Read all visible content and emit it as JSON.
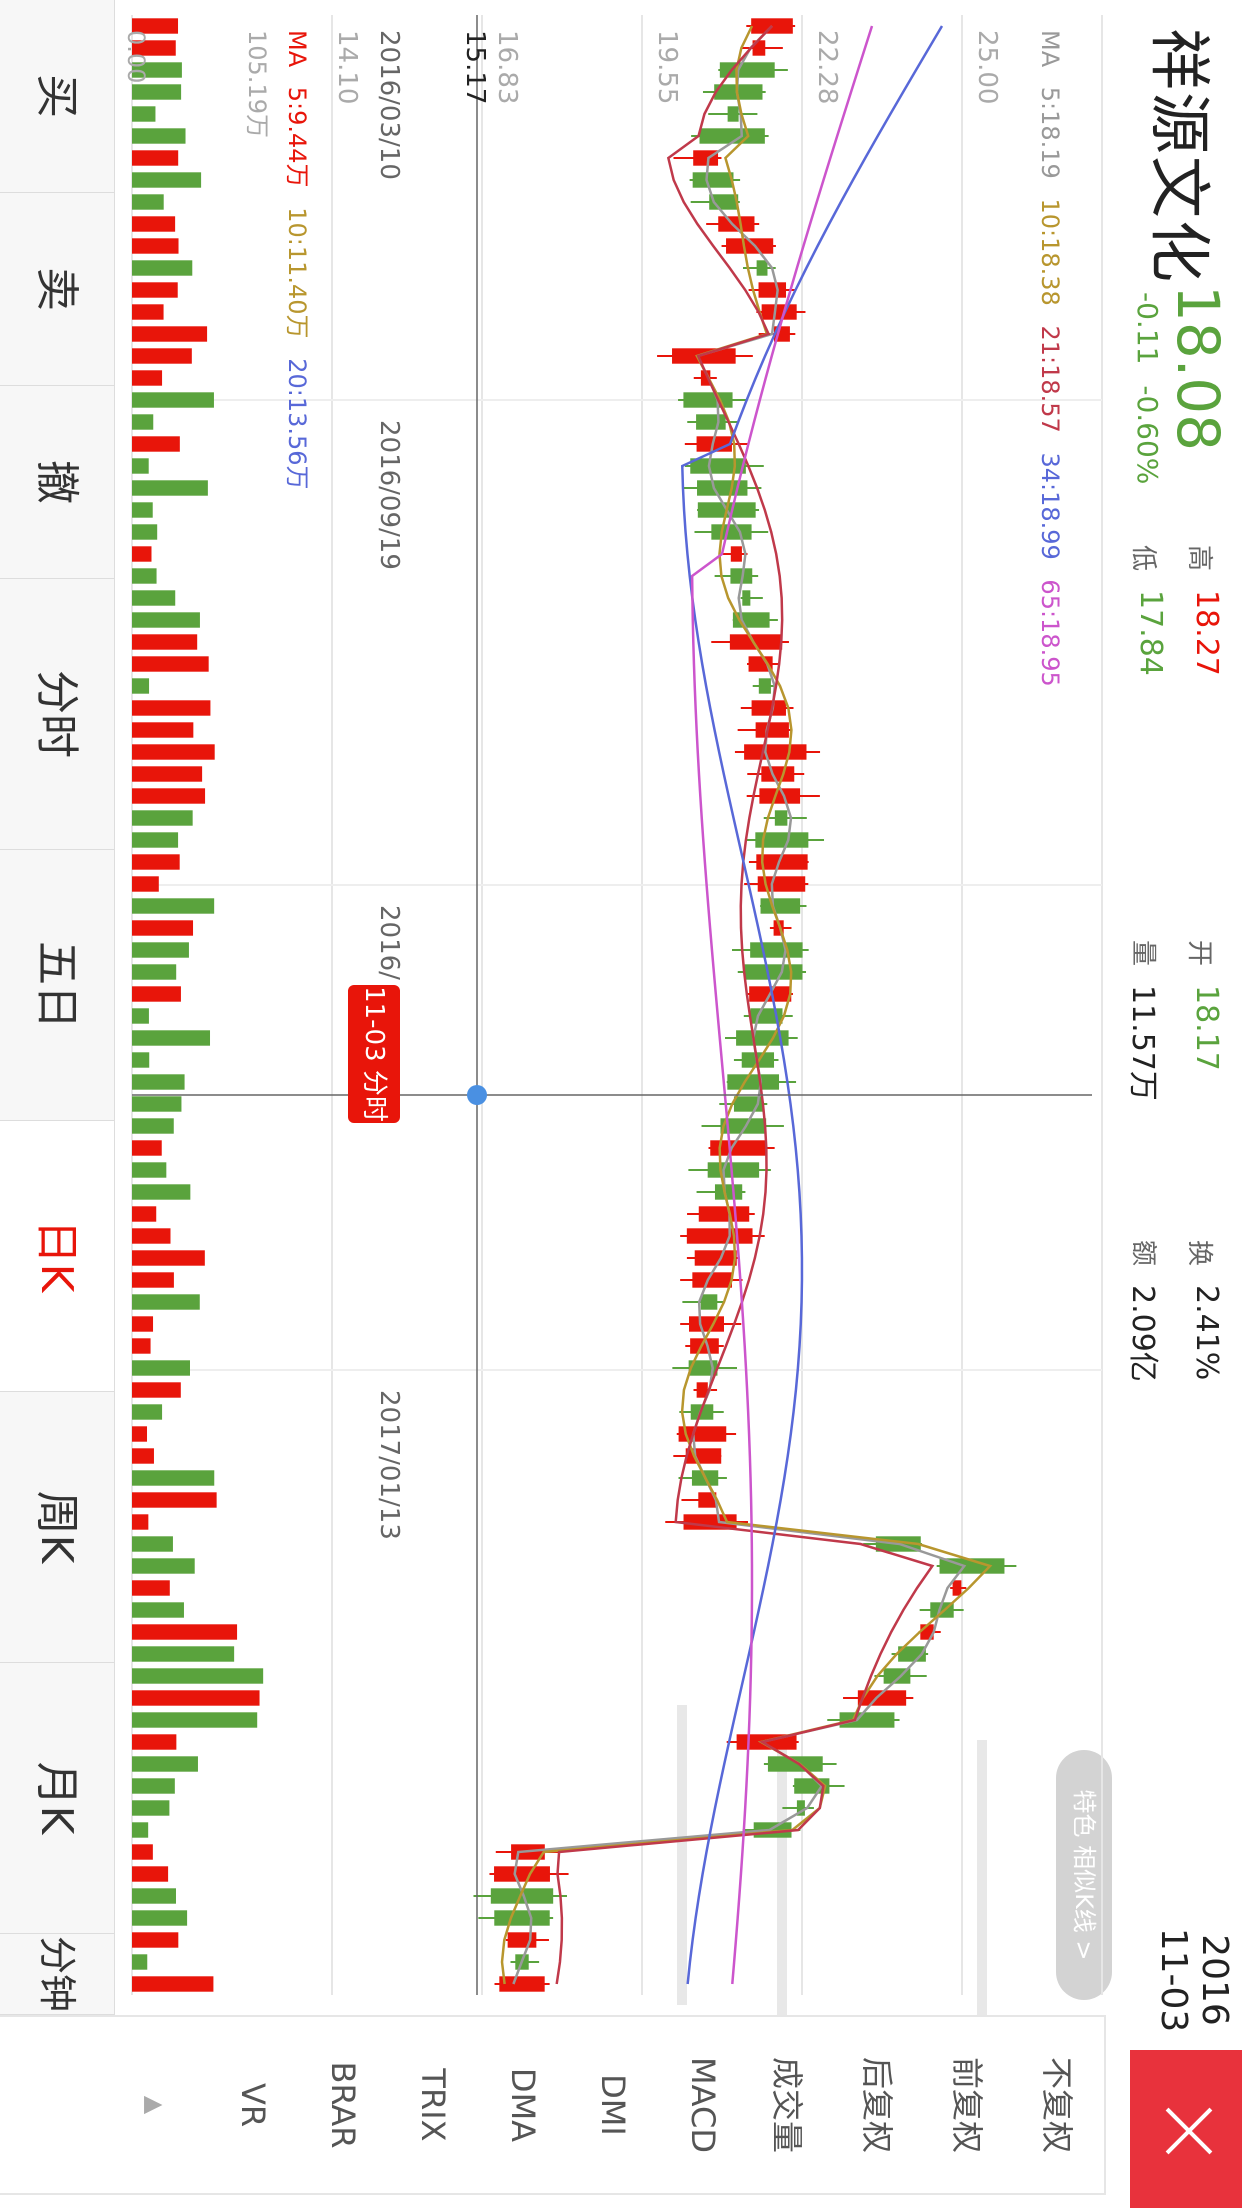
{
  "header": {
    "stock_name": "祥源文化",
    "price": "18.08",
    "change": "-0.11",
    "change_pct": "-0.60%",
    "high_label": "高",
    "high_value": "18.27",
    "low_label": "低",
    "low_value": "17.84",
    "open_label": "开",
    "open_value": "18.17",
    "volume_label": "量",
    "volume_value": "11.57万",
    "turnover_label": "换",
    "turnover_value": "2.41%",
    "amount_label": "额",
    "amount_value": "2.09亿",
    "year": "2016",
    "date": "11-03"
  },
  "special_button": "特色 相似K线 >",
  "ma_legend": {
    "prefix": "MA",
    "items": [
      {
        "text": "5:18.19",
        "color": "#999999"
      },
      {
        "text": "10:18.38",
        "color": "#b8962e"
      },
      {
        "text": "21:18.57",
        "color": "#c0394a"
      },
      {
        "text": "34:18.99",
        "color": "#5868d8"
      },
      {
        "text": "65:18.95",
        "color": "#cc55cc"
      }
    ]
  },
  "price_axis": [
    "25.00",
    "22.28",
    "19.55",
    "16.83",
    "14.10"
  ],
  "crosshair_price": "15.17",
  "date_axis": [
    "2016/03/10",
    "2016/09/19",
    "2016/",
    "2017/01/13"
  ],
  "crosshair_badge": "11-03 分时 >",
  "vol_legend": {
    "prefix": "MA",
    "items": [
      {
        "text": "5:9.44万",
        "color": "#e8150a"
      },
      {
        "text": "10:11.40万",
        "color": "#b8962e"
      },
      {
        "text": "20:13.56万",
        "color": "#5868d8"
      }
    ]
  },
  "vol_max": "105.19万",
  "vol_min": "0.00",
  "side_menu": {
    "items": [
      {
        "label": "不复权",
        "active": false
      },
      {
        "label": "前复权",
        "active": true
      },
      {
        "label": "后复权",
        "active": false
      },
      {
        "label": "成交量",
        "active": true
      },
      {
        "label": "MACD",
        "active": false
      },
      {
        "label": "DMI",
        "active": false
      },
      {
        "label": "DMA",
        "active": false
      },
      {
        "label": "TRIX",
        "active": false
      },
      {
        "label": "BRAR",
        "active": false
      },
      {
        "label": "VR",
        "active": false
      }
    ],
    "more_arrow": "▲"
  },
  "bottom_tabs": [
    {
      "label": "买",
      "active": false
    },
    {
      "label": "卖",
      "active": false
    },
    {
      "label": "撤",
      "active": false
    },
    {
      "label": "分时",
      "active": false
    },
    {
      "label": "五日",
      "active": false
    },
    {
      "label": "日K",
      "active": true
    },
    {
      "label": "周K",
      "active": false
    },
    {
      "label": "月K",
      "active": false
    },
    {
      "label": "分钟▾",
      "active": false
    }
  ],
  "colors": {
    "up": "#e8150a",
    "down": "#5aa33d",
    "grid": "#e0e0e0",
    "crosshair": "#666666",
    "dot": "#4a90e2"
  }
}
